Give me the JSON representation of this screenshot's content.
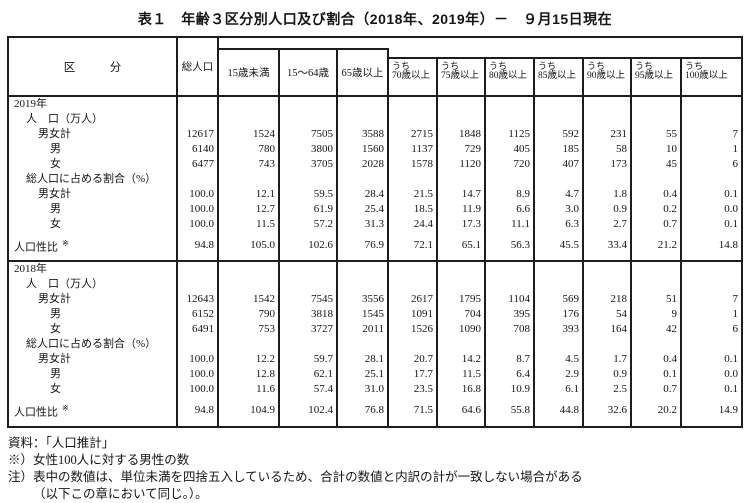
{
  "page": {
    "background": "#ffffff",
    "text_color": "#141414",
    "border_color": "#1d1d1d"
  },
  "title": "表１　年齢３区分別人口及び割合（2018年、2019年）－　９月15日現在",
  "table": {
    "header": {
      "category": "区　　　分",
      "total": "総人口",
      "age_groups": [
        "15歳未満",
        "15〜64歳",
        "65歳以上"
      ],
      "uchi_prefix": "うち",
      "uchi_groups": [
        "70歳以上",
        "75歳以上",
        "80歳以上",
        "85歳以上",
        "90歳以上",
        "95歳以上",
        "100歳以上"
      ]
    },
    "sections": [
      {
        "year": "2019年",
        "rows": [
          {
            "label": "2019年",
            "indent": 0,
            "values": []
          },
          {
            "label": "人　口（万人）",
            "indent": 1,
            "values": []
          },
          {
            "label": "男女計",
            "indent": 2,
            "values": [
              "12617",
              "1524",
              "7505",
              "3588",
              "2715",
              "1848",
              "1125",
              "592",
              "231",
              "55",
              "7"
            ]
          },
          {
            "label": "男",
            "indent": 3,
            "values": [
              "6140",
              "780",
              "3800",
              "1560",
              "1137",
              "729",
              "405",
              "185",
              "58",
              "10",
              "1"
            ]
          },
          {
            "label": "女",
            "indent": 3,
            "values": [
              "6477",
              "743",
              "3705",
              "2028",
              "1578",
              "1120",
              "720",
              "407",
              "173",
              "45",
              "6"
            ]
          },
          {
            "label": "総人口に占める割合（%）",
            "indent": 1,
            "values": []
          },
          {
            "label": "男女計",
            "indent": 2,
            "values": [
              "100.0",
              "12.1",
              "59.5",
              "28.4",
              "21.5",
              "14.7",
              "8.9",
              "4.7",
              "1.8",
              "0.4",
              "0.1"
            ]
          },
          {
            "label": "男",
            "indent": 3,
            "values": [
              "100.0",
              "12.7",
              "61.9",
              "25.4",
              "18.5",
              "11.9",
              "6.6",
              "3.0",
              "0.9",
              "0.2",
              "0.0"
            ]
          },
          {
            "label": "女",
            "indent": 3,
            "values": [
              "100.0",
              "11.5",
              "57.2",
              "31.3",
              "24.4",
              "17.3",
              "11.1",
              "6.3",
              "2.7",
              "0.7",
              "0.1"
            ]
          },
          {
            "label": "人口性比",
            "sup": "※",
            "indent": 0,
            "type": "sexratio",
            "values": [
              "94.8",
              "105.0",
              "102.6",
              "76.9",
              "72.1",
              "65.1",
              "56.3",
              "45.5",
              "33.4",
              "21.2",
              "14.8"
            ]
          }
        ]
      },
      {
        "year": "2018年",
        "rows": [
          {
            "label": "2018年",
            "indent": 0,
            "values": []
          },
          {
            "label": "人　口（万人）",
            "indent": 1,
            "values": []
          },
          {
            "label": "男女計",
            "indent": 2,
            "values": [
              "12643",
              "1542",
              "7545",
              "3556",
              "2617",
              "1795",
              "1104",
              "569",
              "218",
              "51",
              "7"
            ]
          },
          {
            "label": "男",
            "indent": 3,
            "values": [
              "6152",
              "790",
              "3818",
              "1545",
              "1091",
              "704",
              "395",
              "176",
              "54",
              "9",
              "1"
            ]
          },
          {
            "label": "女",
            "indent": 3,
            "values": [
              "6491",
              "753",
              "3727",
              "2011",
              "1526",
              "1090",
              "708",
              "393",
              "164",
              "42",
              "6"
            ]
          },
          {
            "label": "総人口に占める割合（%）",
            "indent": 1,
            "values": []
          },
          {
            "label": "男女計",
            "indent": 2,
            "values": [
              "100.0",
              "12.2",
              "59.7",
              "28.1",
              "20.7",
              "14.2",
              "8.7",
              "4.5",
              "1.7",
              "0.4",
              "0.1"
            ]
          },
          {
            "label": "男",
            "indent": 3,
            "values": [
              "100.0",
              "12.8",
              "62.1",
              "25.1",
              "17.7",
              "11.5",
              "6.4",
              "2.9",
              "0.9",
              "0.1",
              "0.0"
            ]
          },
          {
            "label": "女",
            "indent": 3,
            "values": [
              "100.0",
              "11.6",
              "57.4",
              "31.0",
              "23.5",
              "16.8",
              "10.9",
              "6.1",
              "2.5",
              "0.7",
              "0.1"
            ]
          },
          {
            "label": "人口性比",
            "sup": "※",
            "indent": 0,
            "type": "sexratio",
            "values": [
              "94.8",
              "104.9",
              "102.4",
              "76.8",
              "71.5",
              "64.6",
              "55.8",
              "44.8",
              "32.6",
              "20.2",
              "14.9"
            ]
          }
        ]
      }
    ]
  },
  "footnotes": [
    {
      "text": "資料：「人口推計」"
    },
    {
      "text": "※）女性100人に対する男性の数"
    },
    {
      "text": "注）表中の数値は、単位未満を四捨五入しているため、合計の数値と内訳の計が一致しない場合がある"
    },
    {
      "text": "（以下この章において同じ。）。",
      "indent": 1
    }
  ]
}
